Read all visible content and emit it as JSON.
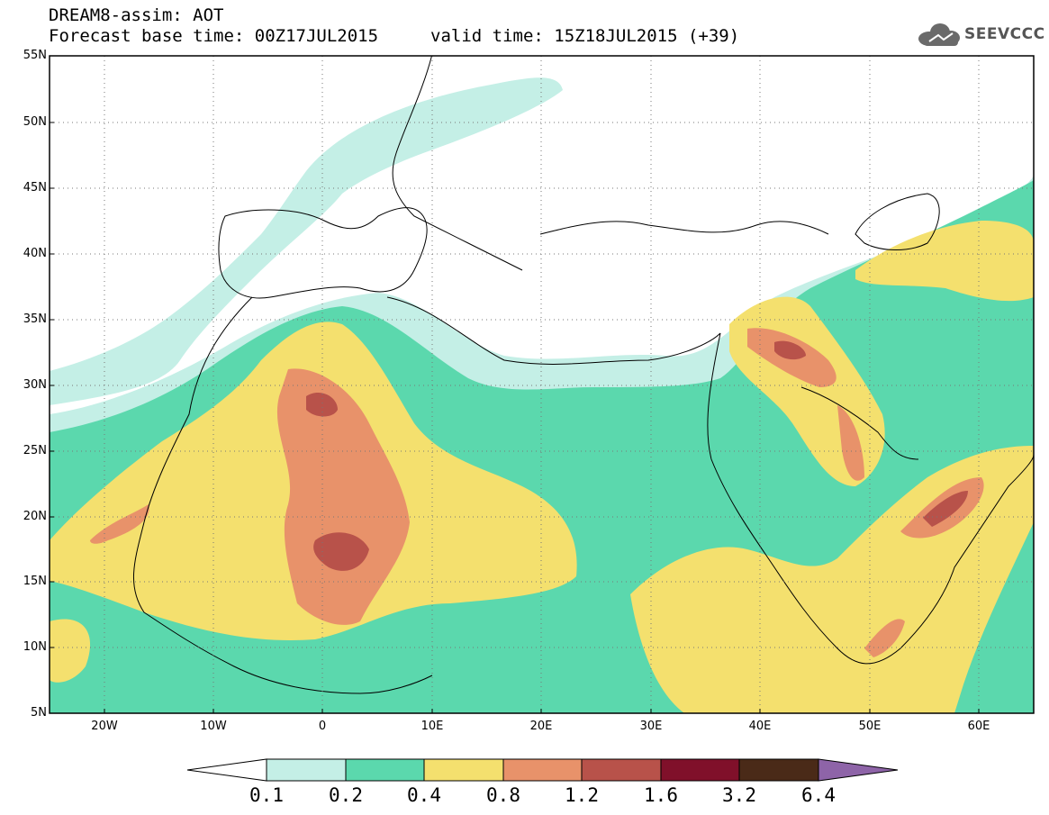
{
  "header": {
    "line1": "DREAM8-assim: AOT",
    "line2": "Forecast base time: 00Z17JUL2015",
    "valid": "valid time: 15Z18JUL2015 (+39)",
    "logo_text": "SEEVCCC"
  },
  "map": {
    "region": "North Africa, Europe and Middle East",
    "extent": {
      "lon": [
        -25,
        65
      ],
      "lat": [
        5,
        55
      ]
    },
    "lat_labels": [
      "55N",
      "50N",
      "45N",
      "40N",
      "35N",
      "30N",
      "25N",
      "20N",
      "15N",
      "10N",
      "5N"
    ],
    "lon_labels": [
      "20W",
      "10W",
      "0",
      "10E",
      "20E",
      "30E",
      "40E",
      "50E",
      "60E"
    ],
    "grid": "dotted"
  },
  "colorbar": {
    "levels": [
      "0.1",
      "0.2",
      "0.4",
      "0.8",
      "1.2",
      "1.6",
      "3.2",
      "6.4"
    ],
    "colors": [
      "#ffffff",
      "#c4efe6",
      "#5bd8ad",
      "#f4e06e",
      "#e8926a",
      "#b8524a",
      "#80102a",
      "#4a2a18",
      "#8e64a8"
    ]
  }
}
